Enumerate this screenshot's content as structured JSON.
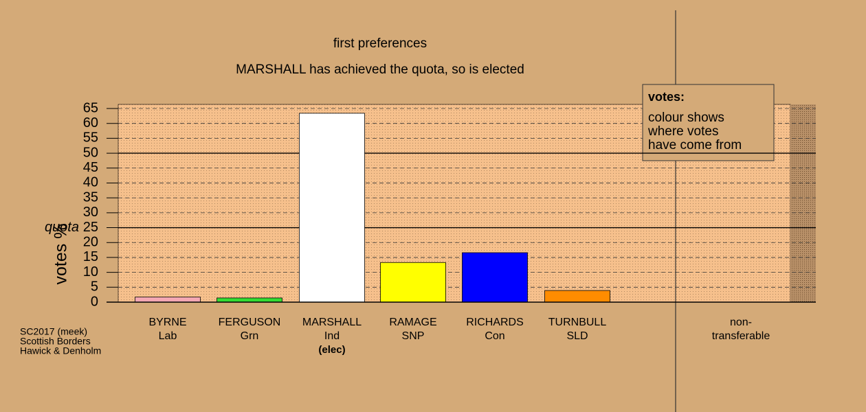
{
  "chart_data": {
    "type": "bar",
    "title": "first preferences",
    "subtitle": "MARSHALL has achieved the quota, so is elected",
    "y_label": "votes %",
    "categories": [
      "BYRNE",
      "FERGUSON",
      "MARSHALL",
      "RAMAGE",
      "RICHARDS",
      "TURNBULL",
      "non-"
    ],
    "parties": [
      "Lab",
      "Grn",
      "Ind",
      "SNP",
      "Con",
      "SLD",
      "transferable"
    ],
    "notes": [
      null,
      null,
      "(elec)",
      null,
      null,
      null,
      null
    ],
    "values": [
      1.7,
      1.4,
      63.4,
      13.3,
      16.6,
      3.9,
      0
    ],
    "colors": [
      "#f4a8b4",
      "#33dd33",
      "#ffffff",
      "#ffff00",
      "#0000ff",
      "#ff8c00",
      "#ffffff"
    ],
    "ylim": [
      0,
      65
    ],
    "yticks": [
      0,
      5,
      10,
      15,
      20,
      25,
      30,
      35,
      40,
      45,
      50,
      55,
      60,
      65
    ],
    "solid_lines": [
      25,
      50
    ],
    "quota_label": "quota",
    "legend": {
      "title": "votes:",
      "lines": [
        "colour shows",
        "where votes",
        "have come from"
      ]
    },
    "footnote": [
      "SC2017 (meek)",
      "Scottish Borders",
      "Hawick & Denholm"
    ]
  }
}
